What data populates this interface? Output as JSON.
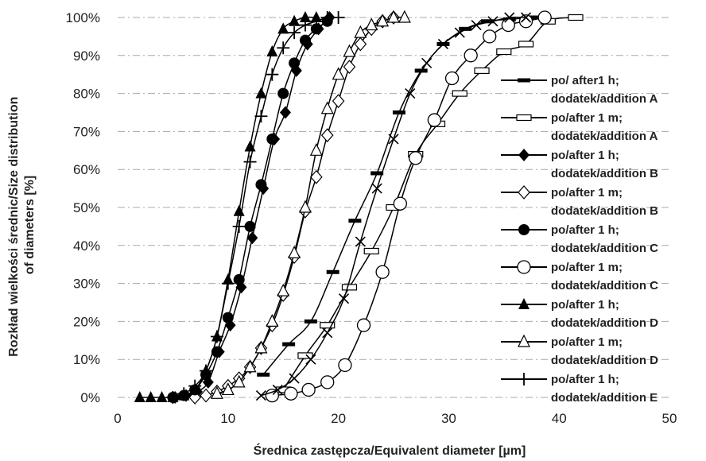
{
  "chart_data": {
    "type": "line",
    "xlabel": "Średnica zastępcza/Equivalent diameter [µm]",
    "ylabel": "Rozkład wielkości średnic/Size distribution of diameters [%]",
    "ylabel_lines": [
      "Rozkład wielkości średnic/Size distribution",
      "of diameters [%]"
    ],
    "xlim": [
      0,
      50
    ],
    "ylim": [
      0,
      100
    ],
    "xticks": [
      "0",
      "10",
      "20",
      "30",
      "40",
      "50"
    ],
    "yticks": [
      "0%",
      "10%",
      "20%",
      "30%",
      "40%",
      "50%",
      "60%",
      "70%",
      "80%",
      "90%",
      "100%"
    ],
    "grid": "horizontal dash-dot",
    "legend_position": "right",
    "series": [
      {
        "name": "po/ after1 h; dodatek/addition A",
        "label_lines": [
          "po/ after1 h;",
          "dodatek/addition A"
        ],
        "marker": "dash-thick",
        "x": [
          13.2,
          15.5,
          17.5,
          19.5,
          21.5,
          23.5,
          25.5,
          27.5,
          29.5,
          31.5,
          33.5,
          35.5,
          37.5
        ],
        "y": [
          6,
          14,
          20,
          33,
          46.5,
          59,
          75,
          86,
          93,
          97,
          99,
          99.5,
          100
        ]
      },
      {
        "name": "po/after 1 m; dodatek/addition A",
        "label_lines": [
          "po/after 1 m;",
          "dodatek/addition A"
        ],
        "marker": "rect-open",
        "x": [
          15,
          17,
          19,
          21,
          23,
          25,
          27,
          29,
          31,
          33,
          35,
          37,
          39,
          41.5
        ],
        "y": [
          2,
          11,
          19,
          29,
          38.5,
          50,
          64,
          72,
          80,
          86,
          91,
          93,
          99,
          100
        ]
      },
      {
        "name": "po/after 1 h; dodatek/addition B",
        "label_lines": [
          "po/after 1 h;",
          "dodatek/addition B"
        ],
        "marker": "diamond-filled",
        "x": [
          5.2,
          6.2,
          7.2,
          8.2,
          9.2,
          10.2,
          11.2,
          12.2,
          13.2,
          14.2,
          15.2,
          16.2,
          17.2,
          18.2,
          19.2
        ],
        "y": [
          0,
          0.5,
          1.5,
          4,
          12,
          19,
          29,
          42,
          55,
          68,
          75,
          86,
          93,
          97,
          100
        ]
      },
      {
        "name": "po/after 1 m; dodatek/addition B",
        "label_lines": [
          "po/after 1 m;",
          "dodatek/addition B"
        ],
        "marker": "diamond-open",
        "x": [
          7,
          8,
          9,
          10,
          11,
          12,
          13,
          14,
          15,
          16,
          17,
          18,
          19,
          20,
          21,
          22,
          23,
          24,
          25
        ],
        "y": [
          0,
          0.5,
          1.5,
          3,
          5,
          8,
          13,
          19,
          27,
          37,
          49,
          58,
          69,
          78,
          87,
          93,
          97,
          99,
          100
        ]
      },
      {
        "name": "po/after 1 h; dodatek/addition C",
        "label_lines": [
          "po/after 1 h;",
          "dodatek/addition C"
        ],
        "marker": "circle-filled",
        "x": [
          5,
          6,
          7,
          8,
          9,
          10,
          11,
          12,
          13,
          14,
          15,
          16,
          17,
          18,
          19
        ],
        "y": [
          0,
          0.5,
          2,
          6,
          12,
          21,
          31,
          45,
          56,
          68,
          80,
          88,
          94,
          97,
          99
        ]
      },
      {
        "name": "po/after 1 m; dodatek/addition C",
        "label_lines": [
          "po/after 1 m;",
          "dodatek/addition C"
        ],
        "marker": "circle-open",
        "x": [
          14,
          15.7,
          17.3,
          19,
          20.6,
          22.3,
          24,
          25.6,
          27,
          28.7,
          30.3,
          32,
          33.7,
          35.4,
          37,
          38.7
        ],
        "y": [
          0.5,
          1,
          2,
          4,
          8.5,
          19,
          33,
          51,
          63,
          73,
          84,
          90,
          95,
          98,
          99,
          100
        ]
      },
      {
        "name": "po/after 1 h; dodatek/addition D",
        "label_lines": [
          "po/after 1 h;",
          "dodatek/addition D"
        ],
        "marker": "triangle-filled",
        "x": [
          2,
          3,
          4,
          5,
          6,
          7,
          8,
          9,
          10,
          11,
          12,
          13,
          14,
          15,
          16,
          17,
          18
        ],
        "y": [
          0,
          0,
          0,
          0,
          0.5,
          2,
          7,
          16,
          31,
          49,
          66,
          80,
          91,
          97,
          99,
          100,
          100
        ]
      },
      {
        "name": "po/after 1 m; dodatek/addition D",
        "label_lines": [
          "po/after 1 m;",
          "dodatek/addition D"
        ],
        "marker": "triangle-open",
        "x": [
          9,
          10,
          11,
          12,
          13,
          14,
          15,
          16,
          17,
          18,
          19,
          20,
          21,
          22,
          23,
          24,
          25,
          26
        ],
        "y": [
          1,
          2,
          4,
          8,
          13,
          20,
          28,
          38,
          50,
          65,
          76,
          85,
          91,
          96,
          98,
          99,
          100,
          100
        ]
      },
      {
        "name": "po/after 1 h; dodatek/addition E",
        "label_lines": [
          "po/after 1 h;",
          "dodatek/addition E"
        ],
        "marker": "plus",
        "x": [
          5,
          6,
          7,
          8,
          9,
          10,
          11,
          12,
          13,
          14,
          15,
          16,
          17,
          18,
          19,
          20
        ],
        "y": [
          0,
          1,
          3,
          7,
          16,
          30,
          45,
          62,
          74,
          85,
          92,
          96,
          98,
          99,
          100,
          100
        ]
      },
      {
        "name": "",
        "label_lines": [],
        "marker": "x",
        "x": [
          13,
          14.5,
          16,
          17.5,
          19,
          20.5,
          22,
          23.5,
          25,
          26.5,
          28,
          29.5,
          31,
          32.5,
          34,
          35.5,
          37
        ],
        "y": [
          0.5,
          2,
          5,
          10,
          17,
          26,
          41,
          55,
          68,
          80,
          88,
          93,
          96,
          98,
          99,
          100,
          100
        ]
      }
    ]
  }
}
